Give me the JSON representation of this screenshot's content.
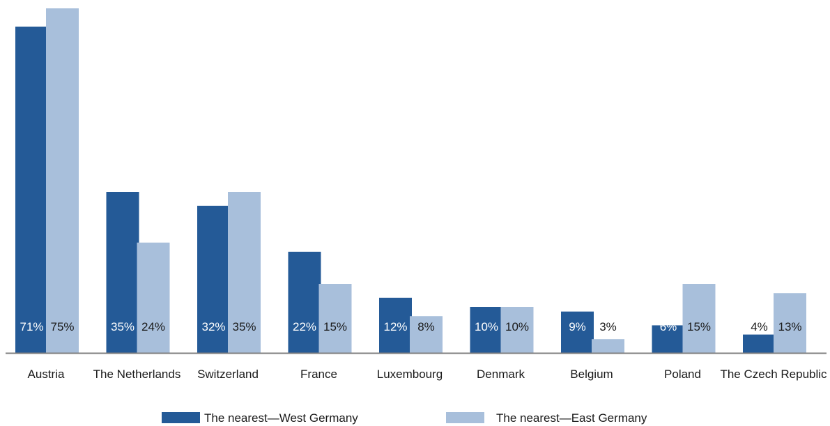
{
  "colors": {
    "west": "#245a97",
    "east": "#a8bfdb",
    "axis": "#7f7f7f",
    "label_on_dark": "#ffffff",
    "label_on_light": "#1a1a1a"
  },
  "chart_data": {
    "type": "bar",
    "title": "",
    "xlabel": "",
    "ylabel": "",
    "ylim": [
      0,
      75
    ],
    "grid": false,
    "legend_position": "bottom",
    "categories": [
      "Austria",
      "The Netherlands",
      "Switzerland",
      "France",
      "Luxembourg",
      "Denmark",
      "Belgium",
      "Poland",
      "The Czech Republic"
    ],
    "series": [
      {
        "name": "The nearest—West Germany",
        "values": [
          71,
          35,
          32,
          22,
          12,
          10,
          9,
          6,
          4
        ],
        "labels": [
          "71%",
          "35%",
          "32%",
          "22%",
          "12%",
          "10%",
          "9%",
          "6%",
          "4%"
        ]
      },
      {
        "name": "The nearest—East Germany",
        "values": [
          75,
          24,
          35,
          15,
          8,
          10,
          3,
          15,
          13
        ],
        "labels": [
          "75%",
          "24%",
          "35%",
          "15%",
          "8%",
          "10%",
          "3%",
          "15%",
          "13%"
        ]
      }
    ]
  }
}
